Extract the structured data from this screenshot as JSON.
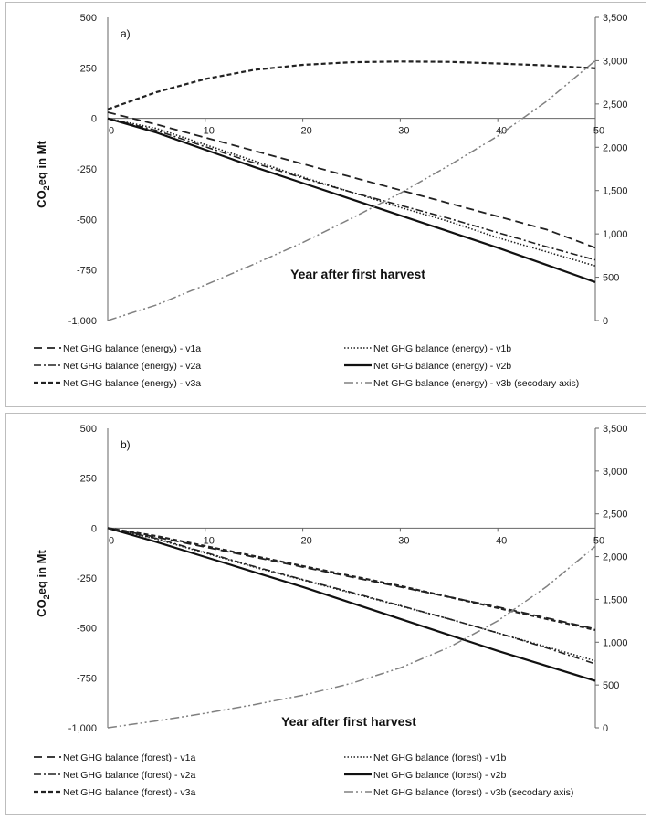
{
  "chart_data": [
    {
      "type": "line",
      "panel_label": "a)",
      "xlabel": "Year after first harvest",
      "ylabel_main": "CO",
      "ylabel_sub": "2",
      "ylabel_rest": "eq in Mt",
      "xlim": [
        0,
        50
      ],
      "ylim": [
        -1000,
        500
      ],
      "y2lim": [
        0,
        3500
      ],
      "x_ticks": [
        "0",
        "10",
        "20",
        "30",
        "40",
        "50"
      ],
      "y_ticks": [
        "500",
        "250",
        "0",
        "-250",
        "-500",
        "-750",
        "-1,000"
      ],
      "y2_ticks": [
        "3,500",
        "3,000",
        "2,500",
        "2,000",
        "1,500",
        "1,000",
        "500",
        "0"
      ],
      "x": [
        0,
        5,
        10,
        15,
        20,
        25,
        30,
        35,
        40,
        45,
        50
      ],
      "series": [
        {
          "name": "Net GHG balance (energy) - v1a",
          "style": "long-dash",
          "color": "#222222",
          "axis": "left",
          "values": [
            30,
            -30,
            -95,
            -160,
            -225,
            -290,
            -355,
            -420,
            -485,
            -550,
            -640
          ]
        },
        {
          "name": "Net GHG balance (energy) - v1b",
          "style": "dotted",
          "color": "#222222",
          "axis": "left",
          "values": [
            0,
            -50,
            -130,
            -210,
            -290,
            -365,
            -440,
            -510,
            -590,
            -660,
            -730
          ]
        },
        {
          "name": "Net GHG balance (energy) - v2a",
          "style": "dash-dot",
          "color": "#222222",
          "axis": "left",
          "values": [
            0,
            -60,
            -140,
            -220,
            -295,
            -365,
            -430,
            -495,
            -565,
            -635,
            -700
          ]
        },
        {
          "name": "Net GHG balance (energy) - v2b",
          "style": "solid",
          "color": "#111111",
          "axis": "left",
          "values": [
            0,
            -70,
            -155,
            -240,
            -320,
            -400,
            -480,
            -560,
            -640,
            -725,
            -810
          ]
        },
        {
          "name": "Net GHG balance (energy) - v3a",
          "style": "short-dash",
          "color": "#222222",
          "axis": "left",
          "values": [
            45,
            130,
            195,
            240,
            265,
            278,
            282,
            280,
            272,
            262,
            248
          ]
        },
        {
          "name": "Net GHG balance (energy) - v3b (secodary axis)",
          "style": "dash-dot-gray",
          "color": "#808080",
          "axis": "right",
          "values": [
            0,
            180,
            410,
            650,
            900,
            1180,
            1470,
            1790,
            2130,
            2530,
            3000
          ]
        }
      ]
    },
    {
      "type": "line",
      "panel_label": "b)",
      "xlabel": "Year after first harvest",
      "ylabel_main": "CO",
      "ylabel_sub": "2",
      "ylabel_rest": "eq in Mt",
      "xlim": [
        0,
        50
      ],
      "ylim": [
        -1000,
        500
      ],
      "y2lim": [
        0,
        3500
      ],
      "x_ticks": [
        "0",
        "10",
        "20",
        "30",
        "40",
        "50"
      ],
      "y_ticks": [
        "500",
        "250",
        "0",
        "-250",
        "-500",
        "-750",
        "-1,000"
      ],
      "y2_ticks": [
        "3,500",
        "3,000",
        "2,500",
        "2,000",
        "1,500",
        "1,000",
        "500",
        "0"
      ],
      "x": [
        0,
        5,
        10,
        15,
        20,
        25,
        30,
        35,
        40,
        45,
        50
      ],
      "series": [
        {
          "name": "Net GHG balance (forest) - v1a",
          "style": "long-dash",
          "color": "#222222",
          "axis": "left",
          "values": [
            0,
            -45,
            -95,
            -145,
            -195,
            -245,
            -295,
            -345,
            -395,
            -450,
            -505
          ]
        },
        {
          "name": "Net GHG balance (forest) - v1b",
          "style": "dotted",
          "color": "#222222",
          "axis": "left",
          "values": [
            0,
            -55,
            -125,
            -195,
            -260,
            -325,
            -390,
            -455,
            -525,
            -595,
            -665
          ]
        },
        {
          "name": "Net GHG balance (forest) - v2a",
          "style": "dash-dot",
          "color": "#222222",
          "axis": "left",
          "values": [
            0,
            -52,
            -122,
            -192,
            -258,
            -322,
            -388,
            -455,
            -525,
            -600,
            -680
          ]
        },
        {
          "name": "Net GHG balance (forest) - v2b",
          "style": "solid",
          "color": "#111111",
          "axis": "left",
          "values": [
            0,
            -70,
            -145,
            -220,
            -295,
            -375,
            -455,
            -535,
            -615,
            -690,
            -765
          ]
        },
        {
          "name": "Net GHG balance (forest) - v3a",
          "style": "short-dash",
          "color": "#222222",
          "axis": "left",
          "values": [
            0,
            -40,
            -90,
            -140,
            -190,
            -240,
            -290,
            -345,
            -400,
            -455,
            -510
          ]
        },
        {
          "name": "Net GHG balance (forest) - v3b (secodary axis)",
          "style": "dash-dot-gray",
          "color": "#808080",
          "axis": "right",
          "values": [
            0,
            80,
            170,
            270,
            380,
            520,
            700,
            940,
            1250,
            1650,
            2120
          ]
        }
      ]
    }
  ]
}
